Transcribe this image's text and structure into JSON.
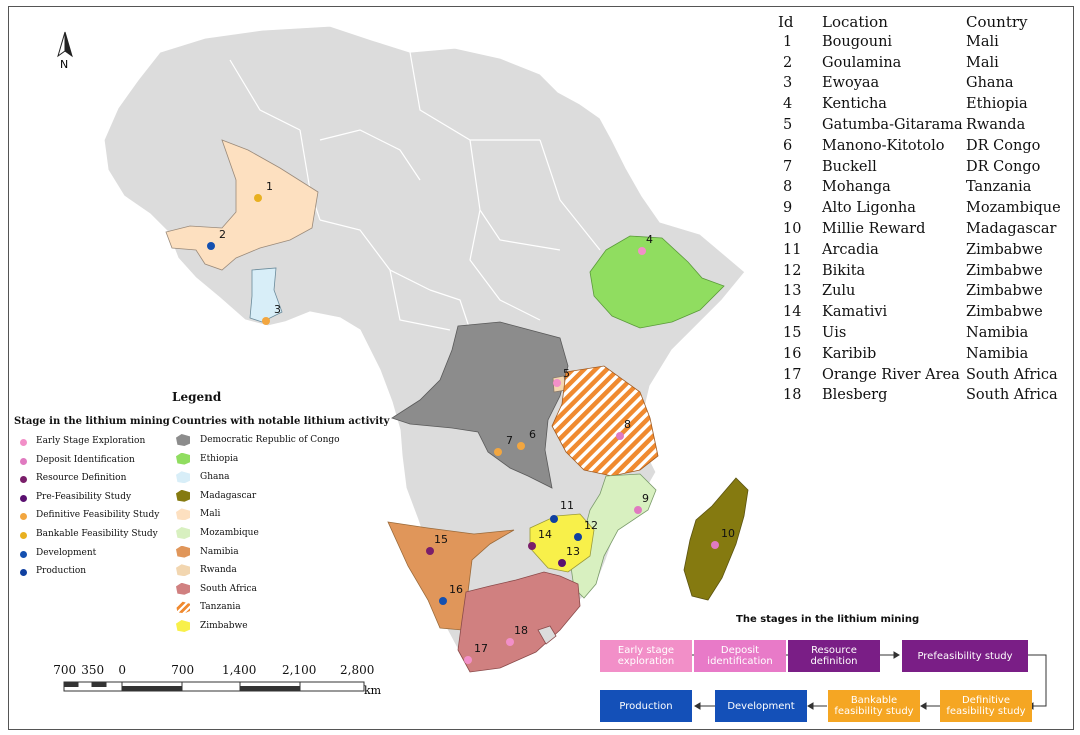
{
  "compass": {
    "label": "N"
  },
  "deposit_table": {
    "headers": {
      "id": "Id",
      "location": "Location",
      "country": "Country"
    },
    "rows": [
      {
        "id": "1",
        "location": "Bougouni",
        "country": "Mali"
      },
      {
        "id": "2",
        "location": "Goulamina",
        "country": "Mali"
      },
      {
        "id": "3",
        "location": "Ewoyaa",
        "country": "Ghana"
      },
      {
        "id": "4",
        "location": "Kenticha",
        "country": "Ethiopia"
      },
      {
        "id": "5",
        "location": "Gatumba-Gitarama",
        "country": "Rwanda"
      },
      {
        "id": "6",
        "location": "Manono-Kitotolo",
        "country": "DR Congo"
      },
      {
        "id": "7",
        "location": "Buckell",
        "country": "DR Congo"
      },
      {
        "id": "8",
        "location": "Mohanga",
        "country": "Tanzania"
      },
      {
        "id": "9",
        "location": "Alto Ligonha",
        "country": "Mozambique"
      },
      {
        "id": "10",
        "location": "Millie Reward",
        "country": "Madagascar"
      },
      {
        "id": "11",
        "location": "Arcadia",
        "country": "Zimbabwe"
      },
      {
        "id": "12",
        "location": "Bikita",
        "country": "Zimbabwe"
      },
      {
        "id": "13",
        "location": "Zulu",
        "country": "Zimbabwe"
      },
      {
        "id": "14",
        "location": "Kamativi",
        "country": "Zimbabwe"
      },
      {
        "id": "15",
        "location": "Uis",
        "country": "Namibia"
      },
      {
        "id": "16",
        "location": "Karibib",
        "country": "Namibia"
      },
      {
        "id": "17",
        "location": "Orange River Area",
        "country": "South Africa"
      },
      {
        "id": "18",
        "location": "Blesberg",
        "country": "South Africa"
      }
    ]
  },
  "legend": {
    "title": "Legend",
    "stage_header": "Stage in the lithium mining",
    "country_header": "Countries with notable lithium activity",
    "stages": [
      {
        "label": "Early Stage Exploration",
        "color": "#f28fc8"
      },
      {
        "label": "Deposit Identification",
        "color": "#e07ac0"
      },
      {
        "label": "Resource Definition",
        "color": "#7a1e6a"
      },
      {
        "label": "Pre-Feasibility Study",
        "color": "#5a1070"
      },
      {
        "label": "Definitive Feasibility Study",
        "color": "#f2a640"
      },
      {
        "label": "Bankable Feasibility Study",
        "color": "#e8b020"
      },
      {
        "label": "Development",
        "color": "#1450b0"
      },
      {
        "label": "Production",
        "color": "#1040a0"
      }
    ],
    "countries": [
      {
        "label": "Democratic Republic of Congo",
        "color": "#8c8c8c"
      },
      {
        "label": "Ethiopia",
        "color": "#90dd60"
      },
      {
        "label": "Ghana",
        "color": "#d8eef8"
      },
      {
        "label": "Madagascar",
        "color": "#857a10"
      },
      {
        "label": "Mali",
        "color": "#fde0c0"
      },
      {
        "label": "Mozambique",
        "color": "#d8f0c0"
      },
      {
        "label": "Namibia",
        "color": "#e0965a"
      },
      {
        "label": "Rwanda",
        "color": "#f2d6b0"
      },
      {
        "label": "South Africa",
        "color": "#d08080"
      },
      {
        "label": "Tanzania",
        "color": "#f08a30"
      },
      {
        "label": "Zimbabwe",
        "color": "#f8f04a"
      }
    ]
  },
  "map_markers": [
    {
      "id": "1",
      "stage": "Bankable Feasibility Study"
    },
    {
      "id": "2",
      "stage": "Development"
    },
    {
      "id": "3",
      "stage": "Definitive Feasibility Study"
    },
    {
      "id": "4",
      "stage": "Early Stage Exploration"
    },
    {
      "id": "5",
      "stage": "Early Stage Exploration"
    },
    {
      "id": "6",
      "stage": "Definitive Feasibility Study"
    },
    {
      "id": "7",
      "stage": "Definitive Feasibility Study"
    },
    {
      "id": "8",
      "stage": "Deposit Identification"
    },
    {
      "id": "9",
      "stage": "Deposit Identification"
    },
    {
      "id": "10",
      "stage": "Deposit Identification"
    },
    {
      "id": "11",
      "stage": "Production"
    },
    {
      "id": "12",
      "stage": "Production"
    },
    {
      "id": "13",
      "stage": "Pre-Feasibility Study"
    },
    {
      "id": "14",
      "stage": "Resource Definition"
    },
    {
      "id": "15",
      "stage": "Resource Definition"
    },
    {
      "id": "16",
      "stage": "Development"
    },
    {
      "id": "17",
      "stage": "Early Stage Exploration"
    },
    {
      "id": "18",
      "stage": "Early Stage Exploration"
    }
  ],
  "scale_bar": {
    "labels": [
      "700",
      "350",
      "0",
      "700",
      "1,400",
      "2,100",
      "2,800"
    ],
    "unit": "km"
  },
  "stages_flow": {
    "title": "The stages in the lithium mining",
    "steps": [
      {
        "label": "Early stage exploration",
        "color": "#f28fc8",
        "text_color": "#ffffff"
      },
      {
        "label": "Deposit identification",
        "color": "#e87ac8",
        "text_color": "#ffffff"
      },
      {
        "label": "Resource definition",
        "color": "#7a1e86",
        "text_color": "#ffffff"
      },
      {
        "label": "Prefeasibility study",
        "color": "#7a1e86",
        "text_color": "#ffffff"
      },
      {
        "label": "Definitive feasibility study",
        "color": "#f5a623",
        "text_color": "#ffffff"
      },
      {
        "label": "Bankable feasibility study",
        "color": "#f5a623",
        "text_color": "#ffffff"
      },
      {
        "label": "Development",
        "color": "#1450b8",
        "text_color": "#ffffff"
      },
      {
        "label": "Production",
        "color": "#1450b8",
        "text_color": "#ffffff"
      }
    ]
  }
}
